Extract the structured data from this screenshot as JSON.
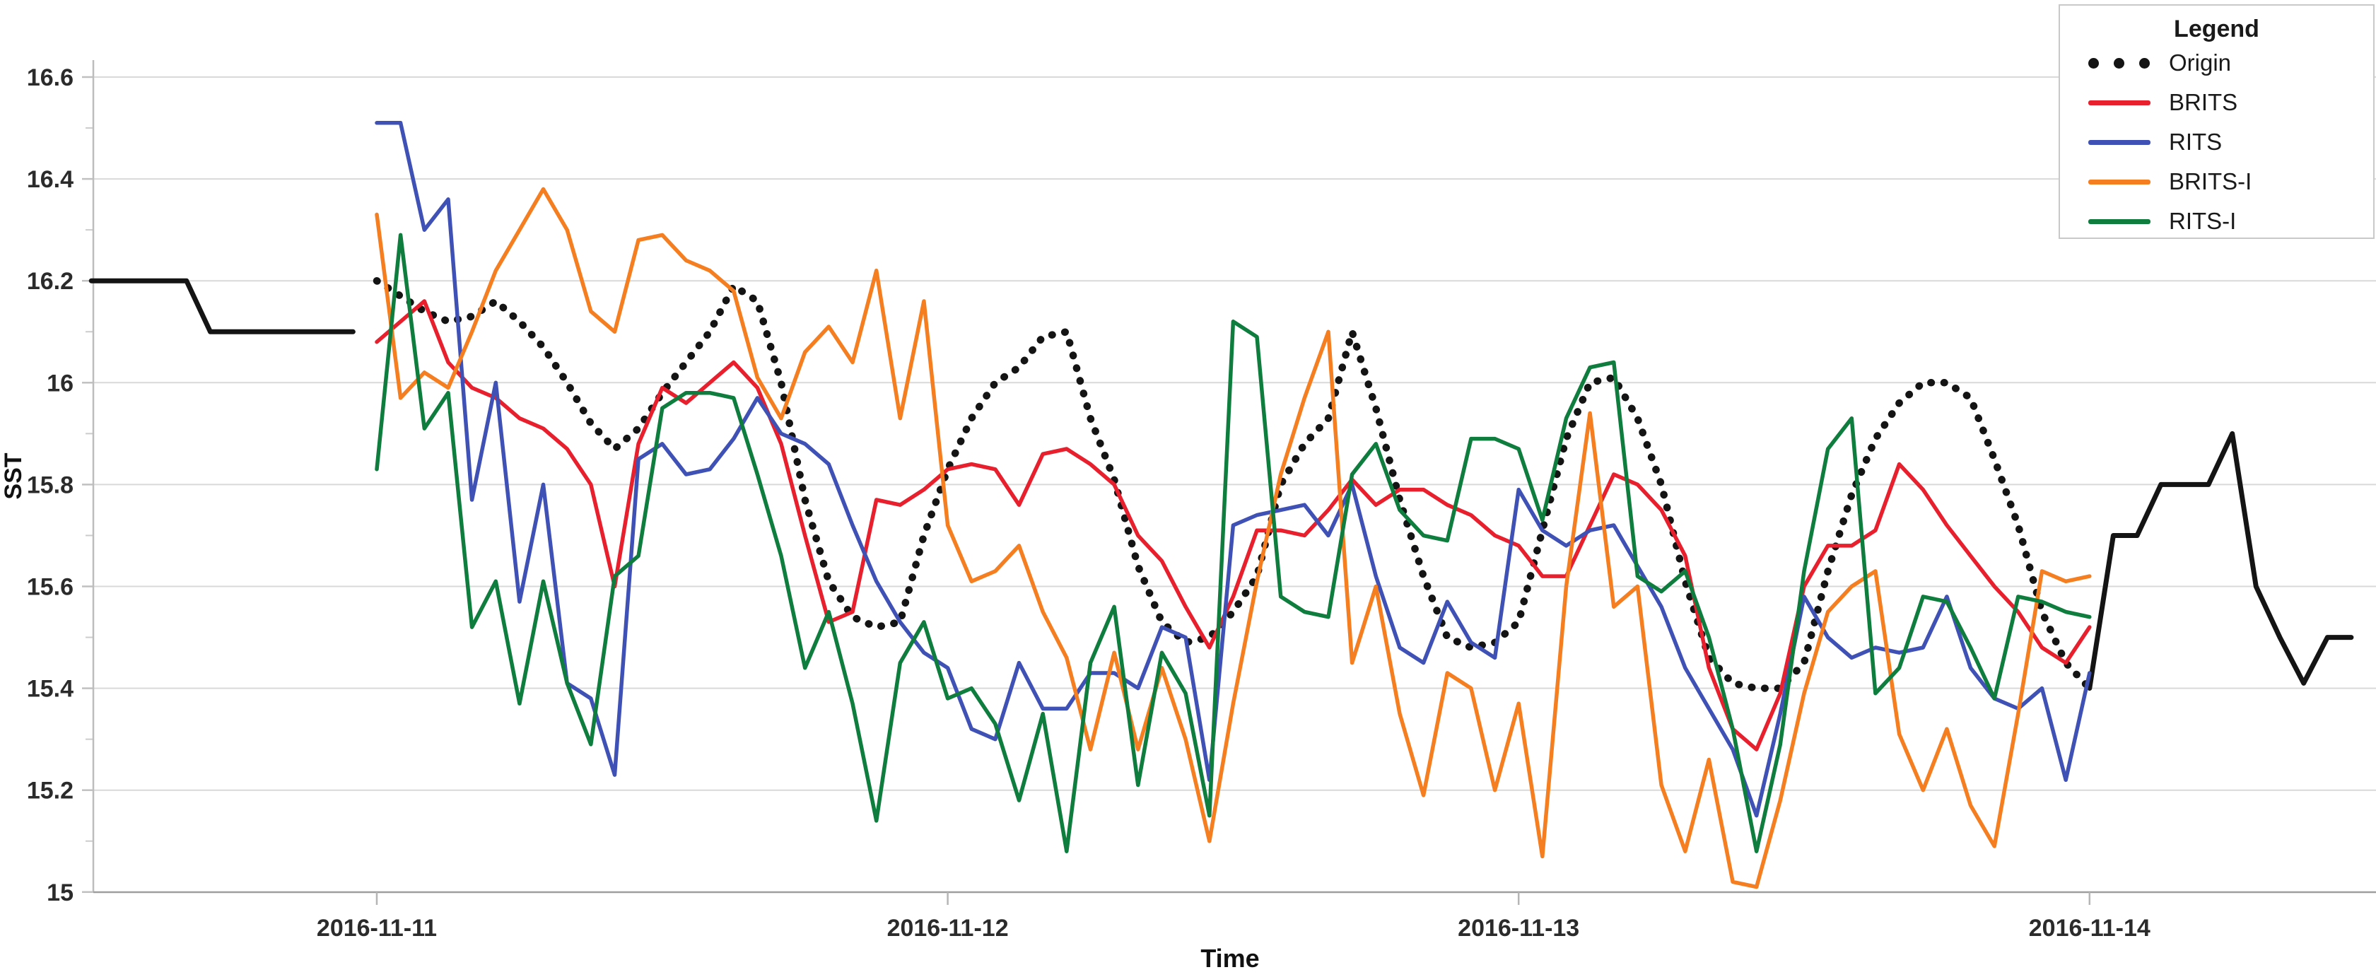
{
  "chart_data": {
    "type": "line",
    "title": "",
    "xlabel": "Time",
    "ylabel": "SST",
    "ylim": [
      15.0,
      16.6
    ],
    "grid": "horizontal",
    "y_ticks": [
      {
        "value": 16.6,
        "label": "16.6"
      },
      {
        "value": 16.4,
        "label": "16.4"
      },
      {
        "value": 16.2,
        "label": "16.2"
      },
      {
        "value": 16.0,
        "label": "16"
      },
      {
        "value": 15.8,
        "label": "15.8"
      },
      {
        "value": 15.6,
        "label": "15.6"
      },
      {
        "value": 15.4,
        "label": "15.4"
      },
      {
        "value": 15.2,
        "label": "15.2"
      },
      {
        "value": 15.0,
        "label": "15"
      }
    ],
    "y_minor_ticks": [
      16.5,
      16.3,
      16.1,
      15.9,
      15.7,
      15.5,
      15.3,
      15.1
    ],
    "x_ticks": [
      {
        "hour": 0,
        "label": "2016-11-11"
      },
      {
        "hour": 24,
        "label": "2016-11-12"
      },
      {
        "hour": 48,
        "label": "2016-11-13"
      },
      {
        "hour": 72,
        "label": "2016-11-14"
      }
    ],
    "x_unit": "hours since 2016-11-11 00:00, 1 point per hour",
    "legend": {
      "title": "Legend",
      "position": "top-right",
      "entries": [
        {
          "label": "Origin",
          "marker": "dots",
          "color": "#141414"
        },
        {
          "label": "BRITS",
          "marker": "line",
          "color": "#e8202e"
        },
        {
          "label": "RITS",
          "marker": "line",
          "color": "#3f51b5"
        },
        {
          "label": "BRITS-I",
          "marker": "line",
          "color": "#f57e20"
        },
        {
          "label": "RITS-I",
          "marker": "line",
          "color": "#0e7d3e"
        }
      ]
    },
    "series": [
      {
        "name": "Origin",
        "color": "#141414",
        "segments": [
          {
            "part": "observed-left",
            "style": "solid",
            "start_hour": -12,
            "width": 7,
            "values": [
              16.2,
              16.2,
              16.2,
              16.2,
              16.2,
              16.1,
              16.1,
              16.1,
              16.1,
              16.1,
              16.1,
              16.1
            ]
          },
          {
            "part": "missing-window-ground-truth",
            "style": "dotted",
            "start_hour": 0,
            "width": 10.5,
            "values": [
              16.2,
              16.17,
              16.14,
              16.12,
              16.13,
              16.16,
              16.12,
              16.07,
              16.0,
              15.92,
              15.87,
              15.91,
              15.98,
              16.04,
              16.1,
              16.19,
              16.16,
              16.0,
              15.77,
              15.61,
              15.54,
              15.52,
              15.53,
              15.7,
              15.83,
              15.93,
              16.0,
              16.03,
              16.09,
              16.1,
              15.93,
              15.81,
              15.64,
              15.53,
              15.49,
              15.5,
              15.55,
              15.62,
              15.8,
              15.88,
              15.93,
              16.1,
              15.95,
              15.77,
              15.62,
              15.5,
              15.48,
              15.49,
              15.53,
              15.71,
              15.89,
              16.0,
              16.01,
              15.93,
              15.8,
              15.61,
              15.46,
              15.41,
              15.4,
              15.4,
              15.45,
              15.63,
              15.78,
              15.89,
              15.96,
              16.0,
              16.0,
              15.97,
              15.85,
              15.72,
              15.55,
              15.45,
              15.4
            ]
          },
          {
            "part": "observed-right",
            "style": "solid",
            "start_hour": 72,
            "width": 7,
            "values": [
              15.4,
              15.7,
              15.7,
              15.8,
              15.8,
              15.8,
              15.9,
              15.6,
              15.5,
              15.41,
              15.5,
              15.5
            ]
          }
        ]
      },
      {
        "name": "BRITS",
        "color": "#e8202e",
        "segments": [
          {
            "part": "imputation",
            "style": "solid",
            "start_hour": 0,
            "width": 5.5,
            "values": [
              16.08,
              16.12,
              16.16,
              16.04,
              15.99,
              15.97,
              15.93,
              15.91,
              15.87,
              15.8,
              15.6,
              15.88,
              15.99,
              15.96,
              16.0,
              16.04,
              15.99,
              15.88,
              15.7,
              15.53,
              15.55,
              15.77,
              15.76,
              15.79,
              15.83,
              15.84,
              15.83,
              15.76,
              15.86,
              15.87,
              15.84,
              15.8,
              15.7,
              15.65,
              15.56,
              15.48,
              15.58,
              15.71,
              15.71,
              15.7,
              15.75,
              15.81,
              15.76,
              15.79,
              15.79,
              15.76,
              15.74,
              15.7,
              15.68,
              15.62,
              15.62,
              15.72,
              15.82,
              15.8,
              15.75,
              15.66,
              15.44,
              15.32,
              15.28,
              15.39,
              15.6,
              15.68,
              15.68,
              15.71,
              15.84,
              15.79,
              15.72,
              15.66,
              15.6,
              15.55,
              15.48,
              15.45,
              15.52
            ]
          }
        ]
      },
      {
        "name": "RITS",
        "color": "#3f51b5",
        "segments": [
          {
            "part": "imputation",
            "style": "solid",
            "start_hour": 0,
            "width": 5.5,
            "values": [
              16.51,
              16.51,
              16.3,
              16.36,
              15.77,
              16.0,
              15.57,
              15.8,
              15.41,
              15.38,
              15.23,
              15.85,
              15.88,
              15.82,
              15.83,
              15.89,
              15.97,
              15.9,
              15.88,
              15.84,
              15.72,
              15.61,
              15.53,
              15.47,
              15.44,
              15.32,
              15.3,
              15.45,
              15.36,
              15.36,
              15.43,
              15.43,
              15.4,
              15.52,
              15.5,
              15.22,
              15.72,
              15.74,
              15.75,
              15.76,
              15.7,
              15.8,
              15.62,
              15.48,
              15.45,
              15.57,
              15.49,
              15.46,
              15.79,
              15.71,
              15.68,
              15.71,
              15.72,
              15.64,
              15.56,
              15.44,
              15.36,
              15.28,
              15.15,
              15.35,
              15.58,
              15.5,
              15.46,
              15.48,
              15.47,
              15.48,
              15.58,
              15.44,
              15.38,
              15.36,
              15.4,
              15.22,
              15.43
            ]
          }
        ]
      },
      {
        "name": "BRITS-I",
        "color": "#f57e20",
        "segments": [
          {
            "part": "imputation",
            "style": "solid",
            "start_hour": 0,
            "width": 5.5,
            "values": [
              16.33,
              15.97,
              16.02,
              15.99,
              16.1,
              16.22,
              16.3,
              16.38,
              16.3,
              16.14,
              16.1,
              16.28,
              16.29,
              16.24,
              16.22,
              16.18,
              16.01,
              15.93,
              16.06,
              16.11,
              16.04,
              16.22,
              15.93,
              16.16,
              15.72,
              15.61,
              15.63,
              15.68,
              15.55,
              15.46,
              15.28,
              15.47,
              15.28,
              15.44,
              15.3,
              15.1,
              15.37,
              15.61,
              15.82,
              15.97,
              16.1,
              15.45,
              15.6,
              15.35,
              15.19,
              15.43,
              15.4,
              15.2,
              15.37,
              15.07,
              15.6,
              15.94,
              15.56,
              15.6,
              15.21,
              15.08,
              15.26,
              15.02,
              15.01,
              15.18,
              15.39,
              15.55,
              15.6,
              15.63,
              15.31,
              15.2,
              15.32,
              15.17,
              15.09,
              15.35,
              15.63,
              15.61,
              15.62
            ]
          }
        ]
      },
      {
        "name": "RITS-I",
        "color": "#0e7d3e",
        "segments": [
          {
            "part": "imputation",
            "style": "solid",
            "start_hour": 0,
            "width": 5.5,
            "values": [
              15.83,
              16.29,
              15.91,
              15.98,
              15.52,
              15.61,
              15.37,
              15.61,
              15.41,
              15.29,
              15.62,
              15.66,
              15.95,
              15.98,
              15.98,
              15.97,
              15.82,
              15.66,
              15.44,
              15.55,
              15.37,
              15.14,
              15.45,
              15.53,
              15.38,
              15.4,
              15.33,
              15.18,
              15.35,
              15.08,
              15.45,
              15.56,
              15.21,
              15.47,
              15.39,
              15.15,
              16.12,
              16.09,
              15.58,
              15.55,
              15.54,
              15.82,
              15.88,
              15.75,
              15.7,
              15.69,
              15.89,
              15.89,
              15.87,
              15.73,
              15.93,
              16.03,
              16.04,
              15.62,
              15.59,
              15.63,
              15.5,
              15.32,
              15.08,
              15.29,
              15.63,
              15.87,
              15.93,
              15.39,
              15.44,
              15.58,
              15.57,
              15.48,
              15.38,
              15.58,
              15.57,
              15.55,
              15.54
            ]
          }
        ]
      }
    ]
  }
}
